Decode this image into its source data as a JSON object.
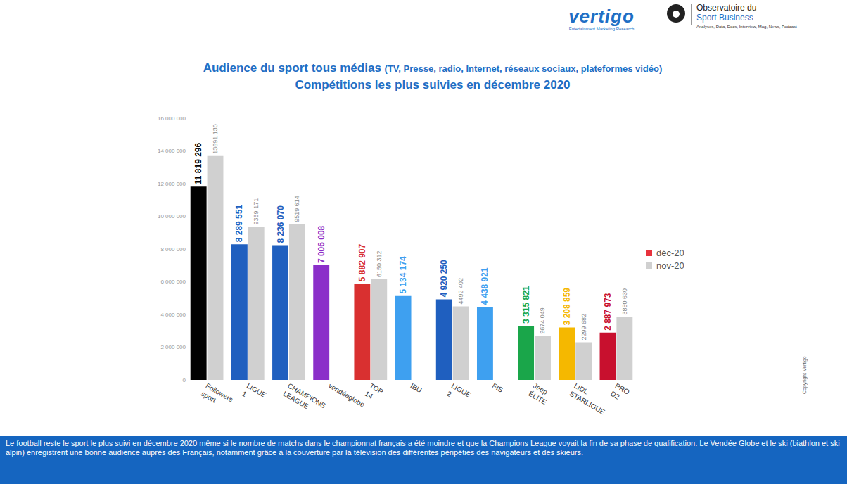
{
  "chart_data": {
    "type": "bar",
    "title": "Audience du sport tous médias (TV, Presse, radio, Internet, réseaux sociaux, plateformes vidéo)",
    "subtitle": "Compétitions les plus suivies en décembre 2020",
    "categories": [
      "Followers sport",
      "LIGUE 1",
      "CHAMPIONS LEAGUE",
      "vendéeglobe",
      "TOP 14",
      "IBU",
      "LIGUE 2",
      "FIS",
      "Jeep ÉLITE",
      "LIDL STARLIGUE",
      "PRO D2"
    ],
    "series": [
      {
        "name": "déc-20",
        "color": "#e8323c",
        "colors": [
          "#000000",
          "#1f5fbf",
          "#1f5fbf",
          "#8b2fc9",
          "#d93030",
          "#3ea0f0",
          "#1f5fbf",
          "#3ea0f0",
          "#1aa64a",
          "#f5b800",
          "#c8102e"
        ],
        "values": [
          11819296,
          8289551,
          8236070,
          7006008,
          5882907,
          5134174,
          4920250,
          4438921,
          3315821,
          3208859,
          2887973
        ],
        "value_labels": [
          "11 819 296",
          "8 289 551",
          "8 236 070",
          "7 006 008",
          "5 882 907",
          "5 134 174",
          "4 920 250",
          "4 438 921",
          "3 315 821",
          "3 208 859",
          "2 887 973"
        ]
      },
      {
        "name": "nov-20",
        "color": "#d0d0d0",
        "values": [
          13691130,
          9359171,
          9519614,
          null,
          6150312,
          null,
          4492402,
          null,
          2674049,
          2299682,
          3850630
        ],
        "value_labels": [
          "13691 130",
          "9359 171",
          "9519 614",
          null,
          "6150 312",
          null,
          "4492 402",
          null,
          "2674 049",
          "2299 682",
          "3850 630"
        ]
      }
    ],
    "ylim": [
      0,
      16000000
    ],
    "yticks": [
      0,
      {
        "value": 2000000,
        "label": "2 000 000"
      },
      {
        "value": 4000000,
        "label": "4 000 000"
      },
      {
        "value": 6000000,
        "label": "6 000 000"
      },
      {
        "value": 8000000,
        "label": "8 000 000"
      },
      {
        "value": 10000000,
        "label": "10 000 000"
      },
      {
        "value": 12000000,
        "label": "12 000 000"
      },
      {
        "value": 14000000,
        "label": "14 000 000"
      },
      {
        "value": 16000000,
        "label": "16 000 000"
      }
    ],
    "grid": false,
    "legend": "right",
    "data_labels": true
  },
  "footer": "Le football reste le sport le plus suivi en décembre 2020 même si le nombre de matchs dans le championnat français a été moindre et que la Champions League voyait la fin de sa phase de qualification. Le Vendée Globe et le ski (biathlon et ski alpin) enregistrent une bonne audience auprès des Français, notamment grâce à la couverture par la télévision des différentes péripéties des navigateurs et des skieurs.",
  "branding": {
    "vertigo": "vertigo",
    "vertigo_tagline": "Entertainment Marketing Research",
    "observatoire": [
      "Observatoire du",
      "Sport Business"
    ],
    "observatoire_tagline": "Analyses, Data, Docs, Interview, Mag, News, Podcast",
    "copyright": "Copyright Vertigo"
  }
}
